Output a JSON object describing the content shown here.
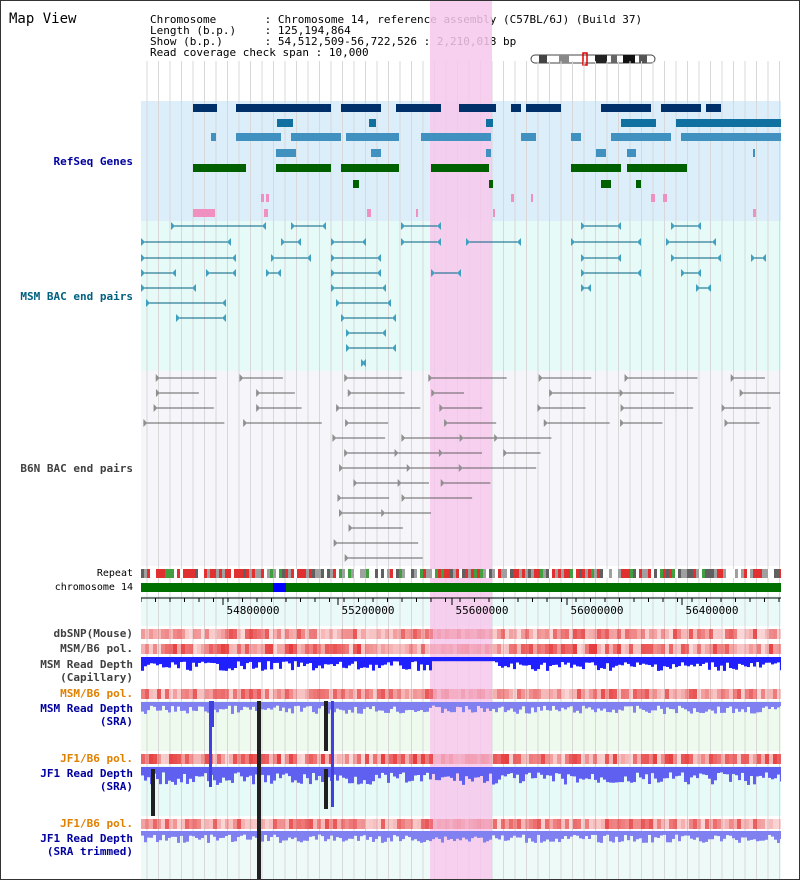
{
  "title": "Map View",
  "info": [
    {
      "key": "Chromosome",
      "value": "Chromosome 14, reference assembly (C57BL/6J) (Build 37)"
    },
    {
      "key": "Length (b.p.)",
      "value": "125,194,864"
    },
    {
      "key": "Show (b.p.)",
      "value": "54,512,509-56,722,526 : 2,210,018 bp"
    },
    {
      "key": "Read coverage check span",
      "value": "10,000"
    }
  ],
  "tracks": {
    "refseq": "RefSeq Genes",
    "msm_bac": "MSM BAC end pairs",
    "b6n_bac": "B6N BAC end pairs",
    "repeat": "Repeat",
    "chromosome": "chromosome 14",
    "dbsnp": "dbSNP(Mouse)",
    "msm_b6_pol": "MSM/B6 pol.",
    "msm_depth_cap": "MSM Read Depth\n(Capillary)",
    "msm_b6_pol2": "MSM/B6 pol.",
    "msm_depth_sra": "MSM Read Depth\n(SRA)",
    "jf1_b6_pol": "JF1/B6 pol.",
    "jf1_depth_sra": "JF1 Read Depth\n(SRA)",
    "jf1_b6_pol2": "JF1/B6 pol.",
    "jf1_depth_trim": "JF1 Read Depth\n(SRA trimmed)"
  },
  "ruler": {
    "ticks": [
      "54800000",
      "55200000",
      "55600000",
      "56000000",
      "56400000"
    ]
  },
  "colors": {
    "refseq_bg": "#dceefa",
    "msm_bac_bg": "#e6faf8",
    "highlight": "#f7c8ec",
    "chrom_green": "#007000",
    "depth_blue": "#0000ff",
    "label_blue": "#0000a0",
    "label_orange": "#e08000"
  }
}
